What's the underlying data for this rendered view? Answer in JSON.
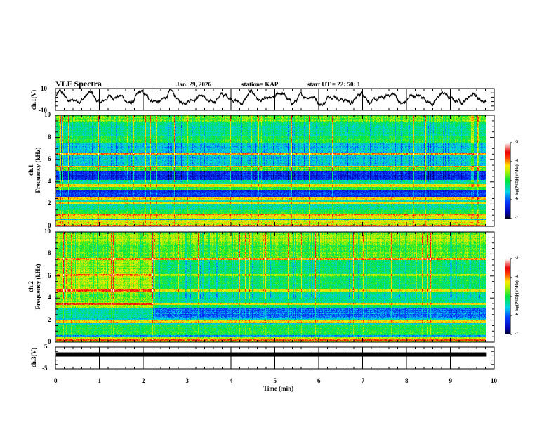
{
  "header": {
    "title": "VLF Spectra",
    "date": "Jan. 29, 2026",
    "station": "station= KAP",
    "start_time": "start  UT =   22: 50: 1"
  },
  "chart_data": [
    {
      "type": "line",
      "panel": "ch1-waveform",
      "ylabel": "ch.1(V)",
      "ylim": [
        -10,
        10
      ],
      "yticks": [
        "10",
        "-10"
      ],
      "xlim": [
        0,
        10
      ],
      "x_data_end": 9.83,
      "description_series": "oscillating voltage roughly between -6 and 8 V with ~1.6 cycles/min quasi-periodic swings",
      "series_mean": 1,
      "series_amplitude": 3.5,
      "series_noise": 2
    },
    {
      "type": "heatmap",
      "panel": "ch1-spectrogram",
      "ylabel_line1": "ch.1",
      "ylabel_line2": "Frequency  (kHz)",
      "ylim": [
        0,
        10
      ],
      "yticks": [
        "0",
        "2",
        "4",
        "6",
        "8",
        "10"
      ],
      "xlim": [
        0,
        10
      ],
      "x_data_end": 9.83,
      "colorbar": {
        "label": "log(PSD) (V²/Hz)",
        "range": [
          -7,
          -3
        ],
        "ticks": [
          "-3",
          "-4",
          "-5",
          "-6",
          "-7"
        ]
      },
      "bands_khz_logpsd": [
        [
          0.0,
          0.15,
          -3.8
        ],
        [
          0.15,
          0.3,
          -4.6
        ],
        [
          0.3,
          0.6,
          -4.3
        ],
        [
          0.6,
          0.75,
          -5.6
        ],
        [
          0.75,
          1.0,
          -4.4
        ],
        [
          1.0,
          1.1,
          -4.0
        ],
        [
          1.1,
          1.5,
          -5.0
        ],
        [
          1.5,
          2.0,
          -5.3
        ],
        [
          2.0,
          2.2,
          -4.2
        ],
        [
          2.2,
          2.4,
          -5.4
        ],
        [
          2.4,
          2.6,
          -4.1
        ],
        [
          2.6,
          3.3,
          -6.2
        ],
        [
          3.3,
          3.6,
          -5.0
        ],
        [
          3.6,
          3.8,
          -4.3
        ],
        [
          3.8,
          4.2,
          -5.2
        ],
        [
          4.2,
          5.0,
          -6.3
        ],
        [
          5.0,
          5.4,
          -4.8
        ],
        [
          5.4,
          5.5,
          -4.0
        ],
        [
          5.5,
          6.4,
          -5.6
        ],
        [
          6.4,
          6.6,
          -4.0
        ],
        [
          6.6,
          7.5,
          -5.6
        ],
        [
          7.5,
          8.2,
          -5.0
        ],
        [
          8.2,
          9.4,
          -5.3
        ],
        [
          9.4,
          10.0,
          -4.7
        ]
      ]
    },
    {
      "type": "heatmap",
      "panel": "ch2-spectrogram",
      "ylabel_line1": "ch.2",
      "ylabel_line2": "Frequency  (kHz)",
      "ylim": [
        0,
        10
      ],
      "yticks": [
        "0",
        "2",
        "4",
        "6",
        "8",
        "10"
      ],
      "xlim": [
        0,
        10
      ],
      "x_data_end": 9.83,
      "colorbar": {
        "label": "log(PSD) (V²/Hz)",
        "range": [
          -7,
          -3
        ],
        "ticks": [
          "-3",
          "-4",
          "-5",
          "-6",
          "-7"
        ]
      },
      "regime_change_min": 2.2,
      "bands_khz_logpsd": [
        [
          0.0,
          0.15,
          -4.4
        ],
        [
          0.15,
          0.3,
          -3.9
        ],
        [
          0.3,
          0.5,
          -4.5
        ],
        [
          0.5,
          0.7,
          -5.8
        ],
        [
          0.7,
          1.6,
          -5.0
        ],
        [
          1.6,
          1.8,
          -5.4
        ],
        [
          1.8,
          2.0,
          -4.2
        ],
        [
          2.0,
          2.2,
          -5.6
        ],
        [
          2.2,
          3.1,
          -5.9
        ],
        [
          3.1,
          3.4,
          -5.2
        ],
        [
          3.4,
          3.6,
          -4.3
        ],
        [
          3.6,
          4.6,
          -5.3
        ],
        [
          4.6,
          4.8,
          -4.3
        ],
        [
          4.8,
          6.0,
          -5.1
        ],
        [
          6.0,
          6.2,
          -4.6
        ],
        [
          6.2,
          7.5,
          -5.2
        ],
        [
          7.5,
          7.7,
          -3.9
        ],
        [
          7.7,
          9.0,
          -4.8
        ],
        [
          9.0,
          10.0,
          -4.6
        ]
      ]
    },
    {
      "type": "line",
      "panel": "ch3-waveform",
      "ylabel": "ch.3(V)",
      "ylim": [
        -5,
        5
      ],
      "yticks": [
        "5",
        "-5"
      ],
      "xlim": [
        0,
        10
      ],
      "x_data_end": 9.83,
      "series_mean": 1.6,
      "series_amplitude": 0.3,
      "series_noise": 0.2
    }
  ],
  "x_axis": {
    "label": "Time  (min)",
    "ticks": [
      "0",
      "1",
      "2",
      "3",
      "4",
      "5",
      "6",
      "7",
      "8",
      "9",
      "10"
    ]
  }
}
